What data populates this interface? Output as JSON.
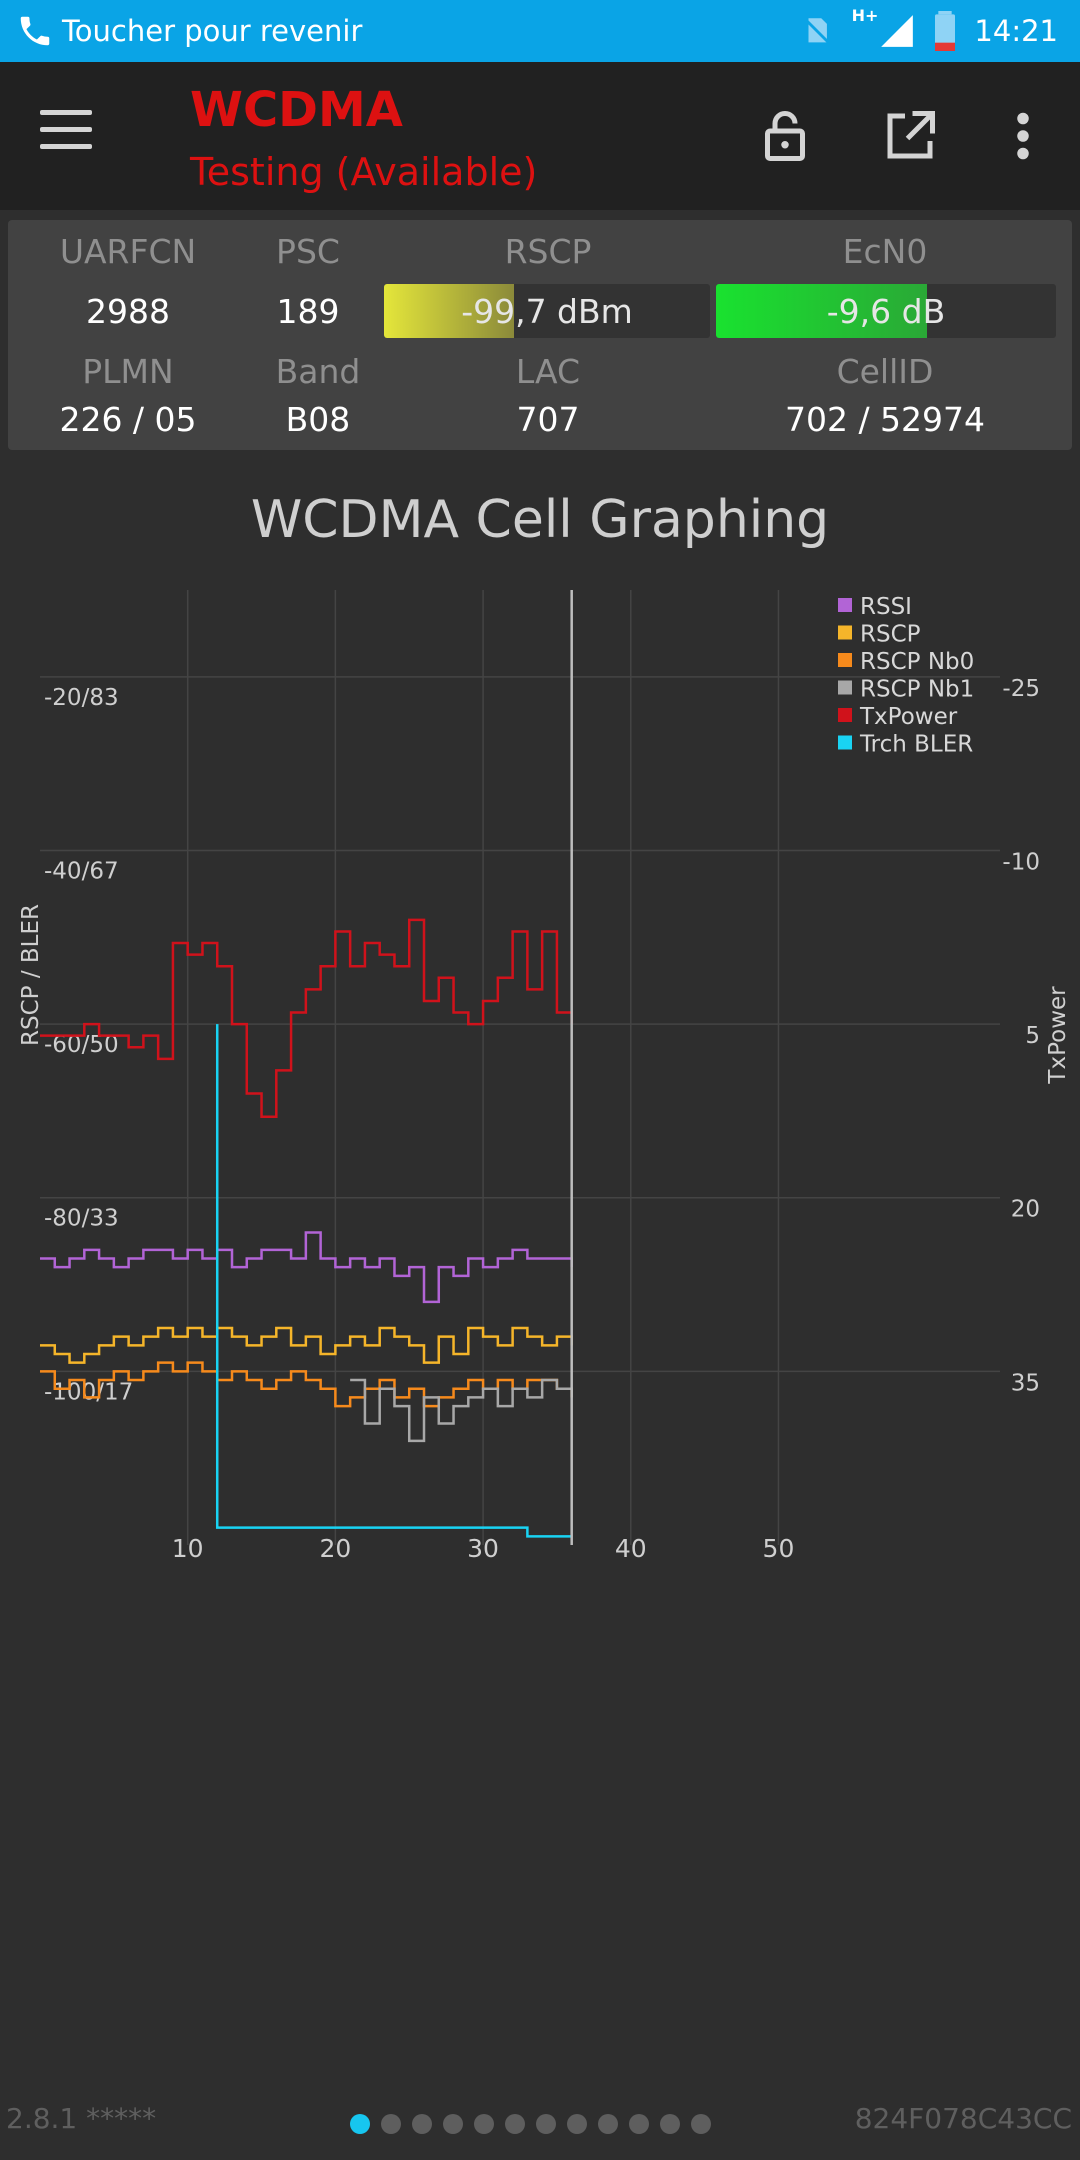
{
  "status_bar": {
    "call_text": "Toucher pour revenir",
    "network": "H+",
    "time": "14:21"
  },
  "toolbar": {
    "title": "WCDMA",
    "subtitle": "Testing (Available)"
  },
  "cell_info": {
    "headers": {
      "uarfcn": "UARFCN",
      "psc": "PSC",
      "rscp": "RSCP",
      "ecn0": "EcN0",
      "plmn": "PLMN",
      "band": "Band",
      "lac": "LAC",
      "cellid": "CellID"
    },
    "values": {
      "uarfcn": "2988",
      "psc": "189",
      "rscp": "-99,7 dBm",
      "ecn0": "-9,6 dB",
      "plmn": "226 / 05",
      "band": "B08",
      "lac": "707",
      "cellid": "702 / 52974"
    },
    "rscp_level": 0.4,
    "ecn0_level": 0.62
  },
  "chart_data": {
    "type": "line",
    "title": "WCDMA Cell Graphing",
    "ylabel": "RSCP / BLER",
    "y2label": "TxPower",
    "x_ticks": [
      "10",
      "20",
      "30",
      "40",
      "50"
    ],
    "y_ticks": [
      "-20/83",
      "-40/67",
      "-60/50",
      "-80/33",
      "-100/17"
    ],
    "y2_ticks": [
      "-25",
      "-10",
      "5",
      "20",
      "35"
    ],
    "xlim": [
      0,
      65
    ],
    "ylim": [
      -120,
      -10
    ],
    "legend_position": "top-right",
    "grid": true,
    "cursor_x": 36,
    "series": [
      {
        "name": "RSSI",
        "color": "#b264d6",
        "axis": "left",
        "x": [
          0,
          1,
          2,
          3,
          4,
          5,
          6,
          7,
          8,
          9,
          10,
          11,
          12,
          13,
          14,
          15,
          16,
          17,
          18,
          19,
          20,
          21,
          22,
          23,
          24,
          25,
          26,
          27,
          28,
          29,
          30,
          31,
          32,
          33,
          34,
          35,
          36
        ],
        "y": [
          -87,
          -88,
          -87,
          -86,
          -87,
          -88,
          -87,
          -86,
          -86,
          -87,
          -86,
          -87,
          -86,
          -88,
          -87,
          -86,
          -86,
          -87,
          -84,
          -87,
          -88,
          -87,
          -88,
          -87,
          -89,
          -88,
          -92,
          -88,
          -89,
          -87,
          -88,
          -87,
          -86,
          -87,
          -87,
          -87,
          -88
        ]
      },
      {
        "name": "RSCP",
        "color": "#f5b52a",
        "axis": "left",
        "x": [
          0,
          1,
          2,
          3,
          4,
          5,
          6,
          7,
          8,
          9,
          10,
          11,
          12,
          13,
          14,
          15,
          16,
          17,
          18,
          19,
          20,
          21,
          22,
          23,
          24,
          25,
          26,
          27,
          28,
          29,
          30,
          31,
          32,
          33,
          34,
          35,
          36
        ],
        "y": [
          -97,
          -98,
          -99,
          -98,
          -97,
          -96,
          -97,
          -96,
          -95,
          -96,
          -95,
          -96,
          -95,
          -96,
          -97,
          -96,
          -95,
          -97,
          -96,
          -98,
          -97,
          -96,
          -97,
          -95,
          -96,
          -97,
          -99,
          -96,
          -98,
          -95,
          -96,
          -97,
          -95,
          -96,
          -97,
          -96,
          -97
        ]
      },
      {
        "name": "RSCP Nb0",
        "color": "#f68a1c",
        "axis": "left",
        "x": [
          0,
          1,
          2,
          3,
          4,
          5,
          6,
          7,
          8,
          9,
          10,
          11,
          12,
          13,
          14,
          15,
          16,
          17,
          18,
          19,
          20,
          21,
          22,
          23,
          24,
          25,
          26,
          27,
          28,
          29,
          30,
          31,
          32,
          33,
          34,
          35,
          36
        ],
        "y": [
          -100,
          -102,
          -101,
          -103,
          -101,
          -100,
          -101,
          -100,
          -99,
          -100,
          -99,
          -100,
          -101,
          -100,
          -101,
          -102,
          -101,
          -100,
          -101,
          -102,
          -104,
          -103,
          -102,
          -101,
          -103,
          -102,
          -104,
          -103,
          -102,
          -101,
          -102,
          -101,
          -102,
          -101,
          -101,
          -102,
          -103
        ]
      },
      {
        "name": "RSCP Nb1",
        "color": "#a8a8a8",
        "axis": "left",
        "x": [
          21,
          22,
          23,
          24,
          25,
          26,
          27,
          28,
          29,
          30,
          31,
          32,
          33,
          34,
          35,
          36
        ],
        "y": [
          -101,
          -106,
          -102,
          -104,
          -108,
          -103,
          -106,
          -104,
          -103,
          -102,
          -104,
          -102,
          -103,
          -101,
          -102,
          -103
        ]
      },
      {
        "name": "TxPower",
        "color": "#d0121b",
        "axis": "right",
        "x": [
          0,
          1,
          2,
          3,
          4,
          5,
          6,
          7,
          8,
          9,
          10,
          11,
          12,
          13,
          14,
          15,
          16,
          17,
          18,
          19,
          20,
          21,
          22,
          23,
          24,
          25,
          26,
          27,
          28,
          29,
          30,
          31,
          32,
          33,
          34,
          35,
          36
        ],
        "y": [
          6,
          6,
          6,
          5,
          6,
          6,
          7,
          6,
          8,
          -2,
          -1,
          -2,
          0,
          5,
          11,
          13,
          9,
          4,
          2,
          0,
          -3,
          0,
          -2,
          -1,
          0,
          -4,
          3,
          1,
          4,
          5,
          3,
          1,
          -3,
          2,
          -3,
          4,
          5
        ]
      },
      {
        "name": "Trch BLER",
        "color": "#19d3f3",
        "axis": "left",
        "x": [
          12,
          12,
          33,
          33,
          36
        ],
        "y": [
          -60,
          -118,
          -118,
          -119,
          -119
        ]
      }
    ]
  },
  "pager": {
    "count": 12,
    "active": 0
  },
  "footer": {
    "version": "2.8.1 *****",
    "device_id": "824F078C43CC"
  }
}
